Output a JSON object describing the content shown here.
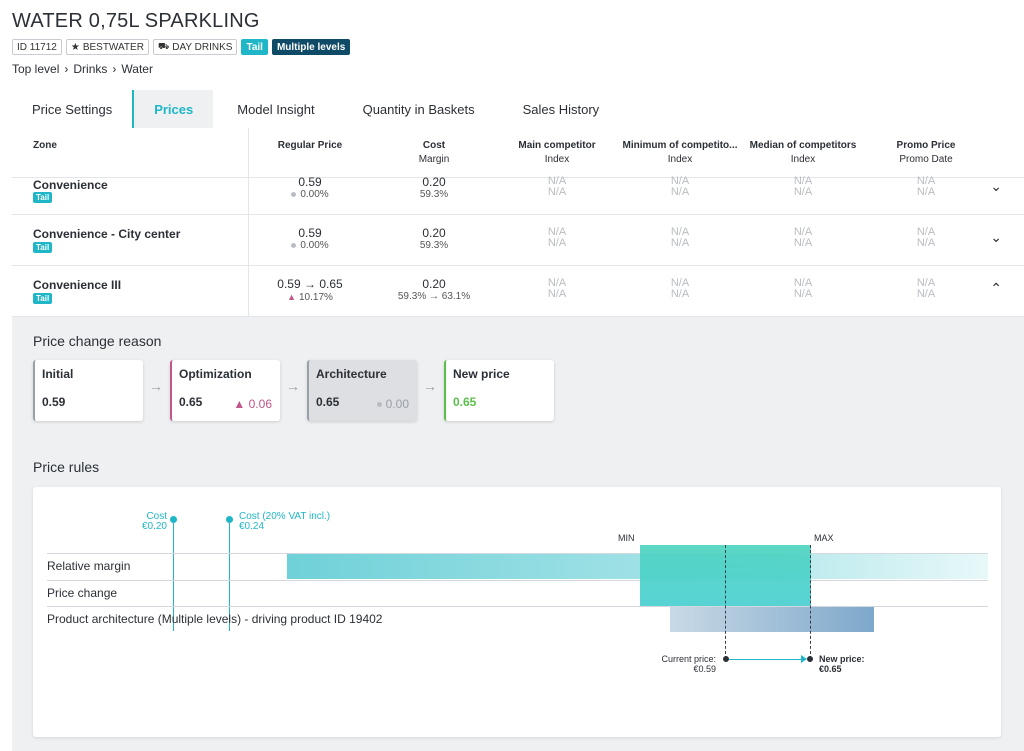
{
  "product": {
    "title": "WATER 0,75L SPARKLING",
    "id_tag": "ID 11712",
    "brand_tag": "BESTWATER",
    "supplier_tag": "DAY DRINKS",
    "tail_tag": "Tail",
    "levels_tag": "Multiple levels"
  },
  "breadcrumb": [
    "Top level",
    "Drinks",
    "Water"
  ],
  "tabs": [
    "Price Settings",
    "Prices",
    "Model Insight",
    "Quantity in Baskets",
    "Sales History"
  ],
  "active_tab": "Prices",
  "table": {
    "headers": [
      {
        "main": "Zone",
        "sub": ""
      },
      {
        "main": "Regular Price",
        "sub": ""
      },
      {
        "main": "Cost",
        "sub": "Margin"
      },
      {
        "main": "Main competitor",
        "sub": "Index"
      },
      {
        "main": "Minimum of competito...",
        "sub": "Index"
      },
      {
        "main": "Median of competitors",
        "sub": "Index"
      },
      {
        "main": "Promo Price",
        "sub": "Promo Date"
      }
    ],
    "rows": [
      {
        "zone": "Convenience",
        "tag": "Tail",
        "price": "0.59",
        "price_change": "0.00%",
        "cost": "0.20",
        "margin": "59.3%",
        "na": "N/A",
        "chevron": "⌄"
      },
      {
        "zone": "Convenience - City center",
        "tag": "Tail",
        "price": "0.59",
        "price_change": "0.00%",
        "cost": "0.20",
        "margin": "59.3%",
        "na": "N/A",
        "chevron": "⌄"
      },
      {
        "zone": "Convenience III",
        "tag": "Tail",
        "price": "0.59 → 0.65",
        "price_change": "10.17%",
        "cost": "0.20",
        "margin": "59.3% → 63.1%",
        "na": "N/A",
        "chevron": "⌃"
      }
    ]
  },
  "price_change_reason": {
    "title": "Price change reason",
    "steps": [
      {
        "label": "Initial",
        "value": "0.59",
        "delta": ""
      },
      {
        "label": "Optimization",
        "value": "0.65",
        "delta": "▲ 0.06"
      },
      {
        "label": "Architecture",
        "value": "0.65",
        "delta": "0.00"
      },
      {
        "label": "New price",
        "value": "0.65",
        "delta": ""
      }
    ]
  },
  "price_rules": {
    "title": "Price rules",
    "cost_label": "Cost",
    "cost_value": "€0.20",
    "cost_vat_label": "Cost (20% VAT incl.)",
    "cost_vat_value": "€0.24",
    "min_label": "MIN",
    "max_label": "MAX",
    "rules": [
      "Relative margin",
      "Price change",
      "Product architecture (Multiple levels) - driving product ID 19402"
    ],
    "current_price_label": "Current price:",
    "current_price_value": "€0.59",
    "new_price_label": "New price:",
    "new_price_value": "€0.65"
  },
  "colors": {
    "accent": "#1fb7c7",
    "navy": "#0f4a66",
    "increase": "#c2558a",
    "new_price": "#5bbf4a"
  }
}
